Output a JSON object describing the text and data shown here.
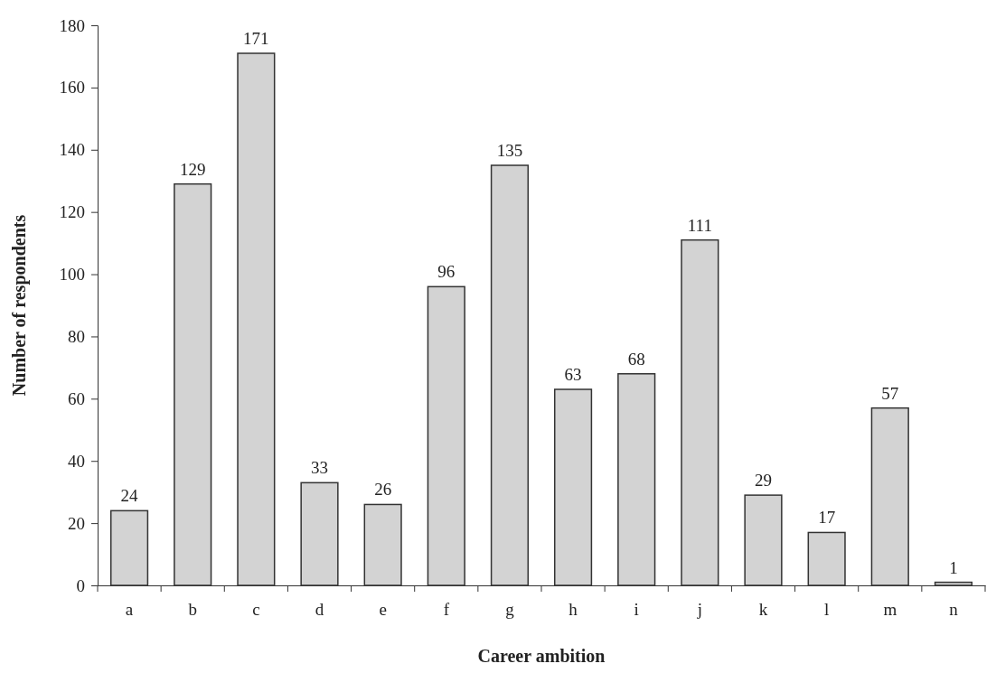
{
  "chart_data": {
    "type": "bar",
    "xlabel": "Career ambition",
    "ylabel": "Number of respondents",
    "categories": [
      "a",
      "b",
      "c",
      "d",
      "e",
      "f",
      "g",
      "h",
      "i",
      "j",
      "k",
      "l",
      "m",
      "n"
    ],
    "values": [
      24,
      129,
      171,
      33,
      26,
      96,
      135,
      63,
      68,
      111,
      29,
      17,
      57,
      1
    ],
    "color": "#d3d3d3",
    "ylim": [
      0,
      180
    ],
    "yticks": [
      0,
      20,
      40,
      60,
      80,
      100,
      120,
      140,
      160,
      180
    ],
    "grid": false,
    "data_labels": true
  }
}
